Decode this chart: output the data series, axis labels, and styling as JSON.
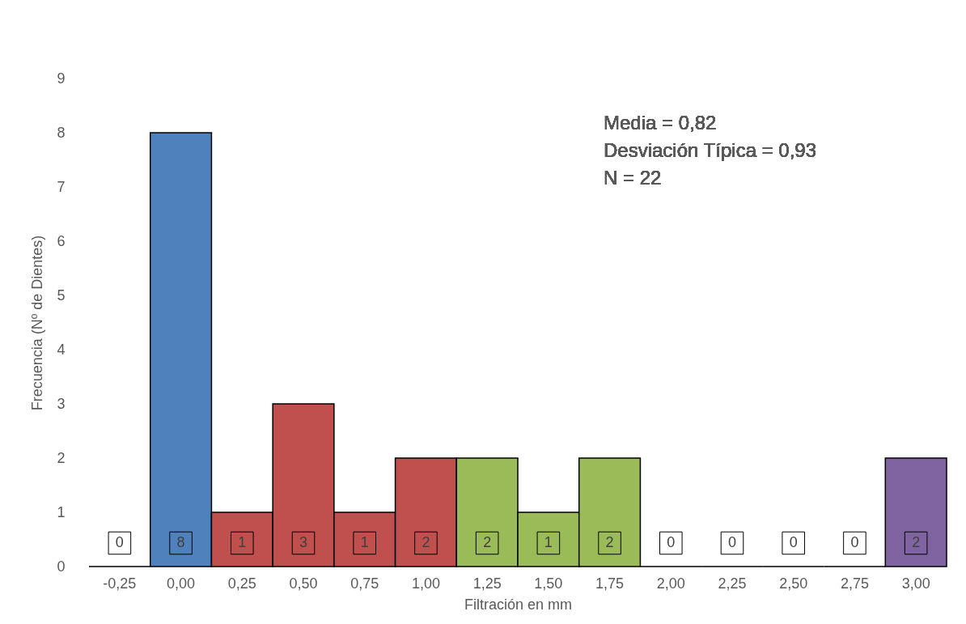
{
  "chart_data": {
    "type": "bar",
    "xlabel": "Filtración en mm",
    "ylabel": "Frecuencia (Nº de Dientes)",
    "categories": [
      "-0,25",
      "0,00",
      "0,25",
      "0,50",
      "0,75",
      "1,00",
      "1,25",
      "1,50",
      "1,75",
      "2,00",
      "2,25",
      "2,50",
      "2,75",
      "3,00"
    ],
    "values": [
      0,
      8,
      1,
      3,
      1,
      2,
      2,
      1,
      2,
      0,
      0,
      0,
      0,
      2
    ],
    "colors": [
      null,
      "#4f81bd",
      "#c0504d",
      "#c0504d",
      "#c0504d",
      "#c0504d",
      "#9bbb59",
      "#9bbb59",
      "#9bbb59",
      null,
      null,
      null,
      null,
      "#8064a2"
    ],
    "ylim": [
      0,
      9
    ],
    "yticks": [
      0,
      1,
      2,
      3,
      4,
      5,
      6,
      7,
      8,
      9
    ],
    "grid": false,
    "data_labels": true,
    "annotations": [
      "Media = 0,82",
      "Desviación Típica = 0,93",
      "N = 22"
    ]
  }
}
